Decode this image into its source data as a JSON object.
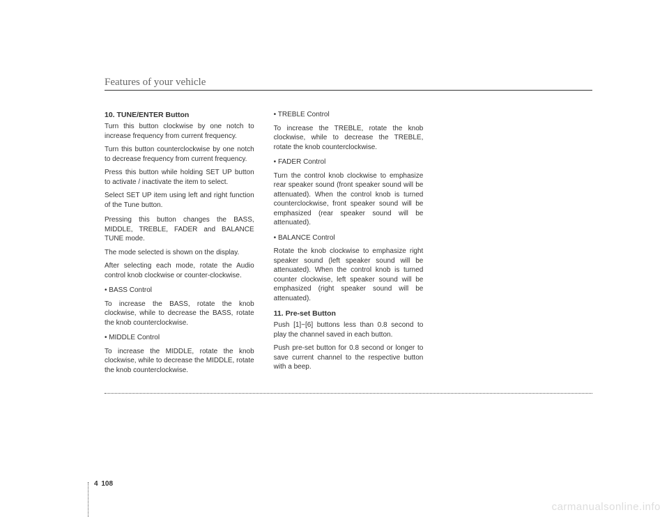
{
  "header": "Features of your vehicle",
  "col1": {
    "h1": "10. TUNE/ENTER Button",
    "p1": "Turn this button clockwise by one notch to increase frequency from current frequency.",
    "p2": "Turn this button counterclockwise by one notch to decrease frequency from current frequency.",
    "p3": "Press this button while holding SET UP button to activate / inactivate the item to select.",
    "p4": "Select SET UP item using left and right function of the Tune button.",
    "p5": "Pressing this button changes the BASS, MIDDLE, TREBLE, FADER and BALANCE TUNE mode.",
    "p6": "The mode selected is shown on the display.",
    "p7": "After selecting each mode, rotate the Audio control knob clockwise or counter-clockwise.",
    "s1label": "• BASS Control",
    "s1text": "To increase the BASS, rotate the knob clockwise, while to decrease the BASS, rotate the knob counterclockwise.",
    "s2label": "• MIDDLE Control",
    "s2text": "To increase the MIDDLE, rotate the knob clockwise, while to decrease the MIDDLE, rotate the knob counterclockwise."
  },
  "col2": {
    "s3label": "• TREBLE Control",
    "s3text": "To increase the TREBLE, rotate the knob clockwise, while to decrease the TREBLE, rotate the knob counterclockwise.",
    "s4label": "• FADER Control",
    "s4text": "Turn the control knob clockwise to emphasize rear speaker sound (front speaker sound will be attenuated). When the control knob is turned counterclockwise, front speaker sound will be emphasized (rear speaker sound will be attenuated).",
    "s5label": "• BALANCE Control",
    "s5text": "Rotate the knob clockwise to emphasize right speaker sound (left speaker sound will be attenuated). When the control knob is turned counter clockwise, left speaker sound will be emphasized (right speaker sound will be attenuated).",
    "h2": "11. Pre-set Button",
    "p8": "Push [1]~[6] buttons less than 0.8 second to play the channel saved in each button.",
    "p9": "Push pre-set button for 0.8 second or longer to save current channel to the respective button with a beep."
  },
  "pagenum": {
    "chapter": "4",
    "page": "108"
  },
  "watermark": "carmanualsonline.info"
}
